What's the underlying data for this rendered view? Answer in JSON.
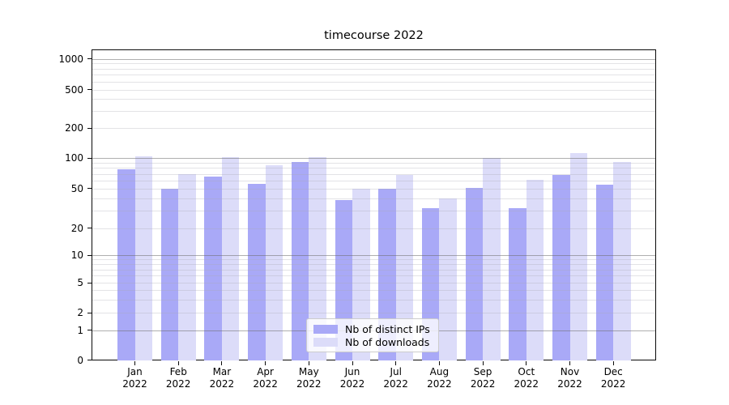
{
  "chart_data": {
    "type": "bar",
    "title": "timecourse 2022",
    "categories": [
      "Jan",
      "Feb",
      "Mar",
      "Apr",
      "May",
      "Jun",
      "Jul",
      "Aug",
      "Sep",
      "Oct",
      "Nov",
      "Dec"
    ],
    "category_year": "2022",
    "series": [
      {
        "name": "Nb of distinct IPs",
        "color": "#a9a9f7",
        "values": [
          78,
          50,
          66,
          56,
          92,
          38,
          50,
          32,
          51,
          32,
          68,
          55
        ]
      },
      {
        "name": "Nb of downloads",
        "color": "#dcdcf9",
        "values": [
          104,
          70,
          101,
          85,
          102,
          50,
          68,
          40,
          100,
          61,
          112,
          92
        ]
      }
    ],
    "yticks": [
      0,
      1,
      2,
      5,
      10,
      20,
      50,
      100,
      200,
      500,
      1000
    ],
    "ylim": [
      0,
      1250
    ],
    "yscale": "symlog",
    "grid": true,
    "legend": {
      "position": "bottom-center",
      "labels": [
        "Nb of distinct IPs",
        "Nb of downloads"
      ]
    }
  }
}
